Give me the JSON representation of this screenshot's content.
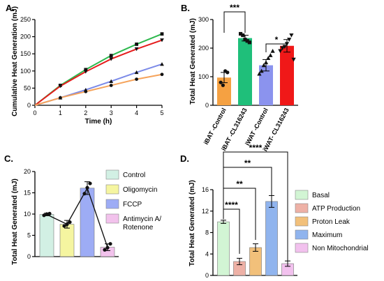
{
  "chart_data": [
    {
      "panel": "A.",
      "type": "line",
      "xlabel": "Time (h)",
      "ylabel": "Cumulative Heat Generation (mJ)",
      "xlim": [
        0,
        5
      ],
      "ylim": [
        0,
        250
      ],
      "x_ticks": [
        0,
        1,
        2,
        3,
        4,
        5
      ],
      "y_ticks": [
        0,
        50,
        100,
        150,
        200,
        250
      ],
      "x": [
        0,
        1,
        2,
        3,
        4,
        5
      ],
      "series": [
        {
          "color": "#2db84d",
          "marker": "square",
          "values": [
            0,
            58,
            104,
            145,
            178,
            208
          ]
        },
        {
          "color": "#e51c1c",
          "marker": "triangle-down",
          "values": [
            0,
            56,
            98,
            135,
            164,
            190
          ]
        },
        {
          "color": "#7b8ae8",
          "marker": "triangle",
          "values": [
            0,
            22,
            45,
            70,
            96,
            120
          ]
        },
        {
          "color": "#f5a35b",
          "marker": "circle",
          "values": [
            0,
            22,
            40,
            58,
            76,
            90
          ]
        }
      ]
    },
    {
      "panel": "B.",
      "type": "bar",
      "ylabel": "Total Heat Generated (mJ)",
      "ylim": [
        0,
        300
      ],
      "y_ticks": [
        0,
        100,
        200,
        300
      ],
      "categories": [
        "iBAT -Control",
        "iBAT -CL316243",
        "iWAT -Control",
        "iWAT- CL316243"
      ],
      "values": [
        97,
        235,
        140,
        208
      ],
      "errors": [
        18,
        10,
        20,
        22
      ],
      "colors": [
        "#f5a142",
        "#1fbf7a",
        "#8b93ee",
        "#f01818"
      ],
      "markers": [
        "circle",
        "square",
        "triangle",
        "triangle-down"
      ],
      "points": [
        [
          80,
          70,
          120,
          115
        ],
        [
          250,
          245,
          230,
          225,
          220
        ],
        [
          110,
          120,
          140,
          150,
          165,
          175,
          190
        ],
        [
          190,
          200,
          205,
          215,
          230,
          245,
          160
        ]
      ],
      "significance": [
        {
          "from": 0,
          "to": 1,
          "label": "***"
        },
        {
          "from": 2,
          "to": 3,
          "label": "*"
        }
      ]
    },
    {
      "panel": "C.",
      "type": "bar",
      "ylabel": "Total Heat Generated (mJ)",
      "ylim": [
        0,
        20
      ],
      "y_ticks": [
        0,
        5,
        10,
        15,
        20
      ],
      "categories": [
        "Control",
        "Oligomycin",
        "FCCP",
        "Antimycin A/ Rotenone"
      ],
      "values": [
        9.9,
        7.6,
        16.1,
        2.2
      ],
      "errors": [
        0.3,
        0.9,
        1.5,
        0.8
      ],
      "colors": [
        "#d2f0e4",
        "#f5f5a0",
        "#9dacf5",
        "#f2c2ec"
      ],
      "points": [
        [
          9.7,
          10.0,
          10.1
        ],
        [
          7.2,
          7.6,
          8.1
        ],
        [
          14.8,
          16.2,
          17.2
        ],
        [
          1.6,
          2.1,
          3.0
        ]
      ],
      "legend": [
        "Control",
        "Oligomycin",
        "FCCP",
        "Antimycin A/ Rotenone"
      ]
    },
    {
      "panel": "D.",
      "type": "bar",
      "ylabel": "Total Heat Generated (mJ)",
      "ylim": [
        0,
        16
      ],
      "y_ticks": [
        0,
        4,
        8,
        12,
        16
      ],
      "categories": [
        "Basal",
        "ATP Production",
        "Proton Leak",
        "Maximum",
        "Non Mitochondrial"
      ],
      "values": [
        10.0,
        2.6,
        5.2,
        13.8,
        2.2
      ],
      "errors": [
        0.3,
        0.6,
        0.7,
        1.1,
        0.5
      ],
      "colors": [
        "#d2f5d4",
        "#eeb1a6",
        "#f2c07a",
        "#90b4ee",
        "#f2c1ee"
      ],
      "legend": [
        "Basal",
        "ATP Production",
        "Proton Leak",
        "Maximum",
        "Non Mitochondrial"
      ],
      "significance": [
        {
          "from": 0,
          "to": 1,
          "label": "****"
        },
        {
          "from": 0,
          "to": 2,
          "label": "**"
        },
        {
          "from": 0,
          "to": 3,
          "label": "**"
        },
        {
          "from": 0,
          "to": 4,
          "label": "****"
        }
      ]
    }
  ]
}
